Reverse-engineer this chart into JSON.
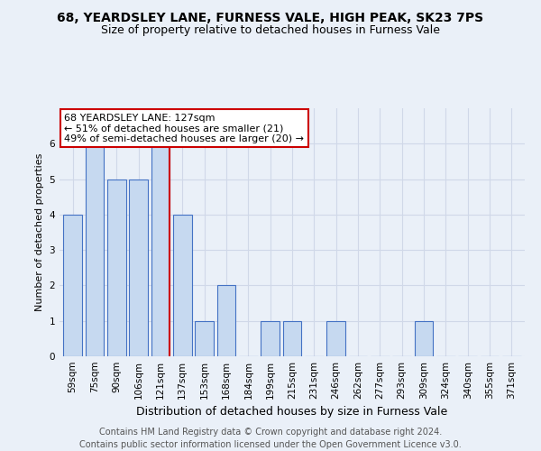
{
  "title_line1": "68, YEARDSLEY LANE, FURNESS VALE, HIGH PEAK, SK23 7PS",
  "title_line2": "Size of property relative to detached houses in Furness Vale",
  "xlabel": "Distribution of detached houses by size in Furness Vale",
  "ylabel": "Number of detached properties",
  "categories": [
    "59sqm",
    "75sqm",
    "90sqm",
    "106sqm",
    "121sqm",
    "137sqm",
    "153sqm",
    "168sqm",
    "184sqm",
    "199sqm",
    "215sqm",
    "231sqm",
    "246sqm",
    "262sqm",
    "277sqm",
    "293sqm",
    "309sqm",
    "324sqm",
    "340sqm",
    "355sqm",
    "371sqm"
  ],
  "values": [
    4,
    6,
    5,
    5,
    6,
    4,
    1,
    2,
    0,
    1,
    1,
    0,
    1,
    0,
    0,
    0,
    1,
    0,
    0,
    0,
    0
  ],
  "bar_color": "#c6d9f0",
  "bar_edge_color": "#4472c4",
  "red_line_bar_index": 4,
  "red_line_color": "#cc0000",
  "annotation_text": "68 YEARDSLEY LANE: 127sqm\n← 51% of detached houses are smaller (21)\n49% of semi-detached houses are larger (20) →",
  "annotation_box_color": "white",
  "annotation_box_edge_color": "#cc0000",
  "ylim": [
    0,
    7
  ],
  "yticks": [
    0,
    1,
    2,
    3,
    4,
    5,
    6,
    7
  ],
  "grid_color": "#d0d8e8",
  "footer_line1": "Contains HM Land Registry data © Crown copyright and database right 2024.",
  "footer_line2": "Contains public sector information licensed under the Open Government Licence v3.0.",
  "bg_color": "#eaf0f8",
  "plot_bg_color": "#eaf0f8",
  "title_fontsize": 10,
  "subtitle_fontsize": 9,
  "ylabel_fontsize": 8,
  "xlabel_fontsize": 9,
  "tick_fontsize": 7.5,
  "annotation_fontsize": 8,
  "footer_fontsize": 7
}
